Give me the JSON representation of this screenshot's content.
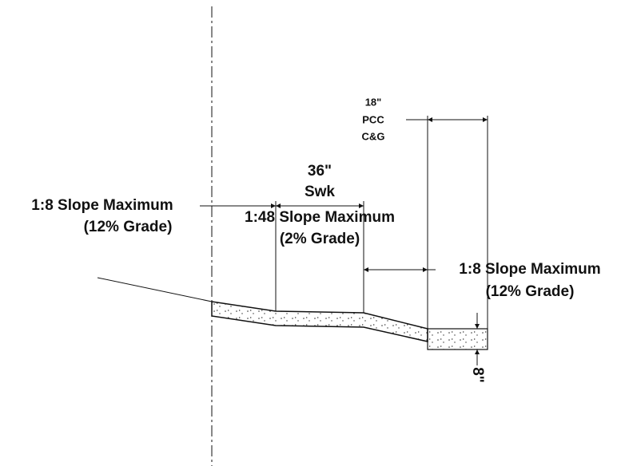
{
  "annotations": {
    "curb": {
      "width": "18\"",
      "line1": "PCC",
      "line2": "C&G"
    },
    "sidewalk": {
      "width": "36\"",
      "label": "Swk"
    },
    "left_slope": {
      "slope": "1:8 Slope Maximum",
      "grade": "(12% Grade)"
    },
    "middle_slope": {
      "slope": "1:48 Slope Maximum",
      "grade": "(2% Grade)"
    },
    "right_slope": {
      "slope": "1:8 Slope Maximum",
      "grade": "(12% Grade)"
    },
    "curb_depth": "8\""
  }
}
